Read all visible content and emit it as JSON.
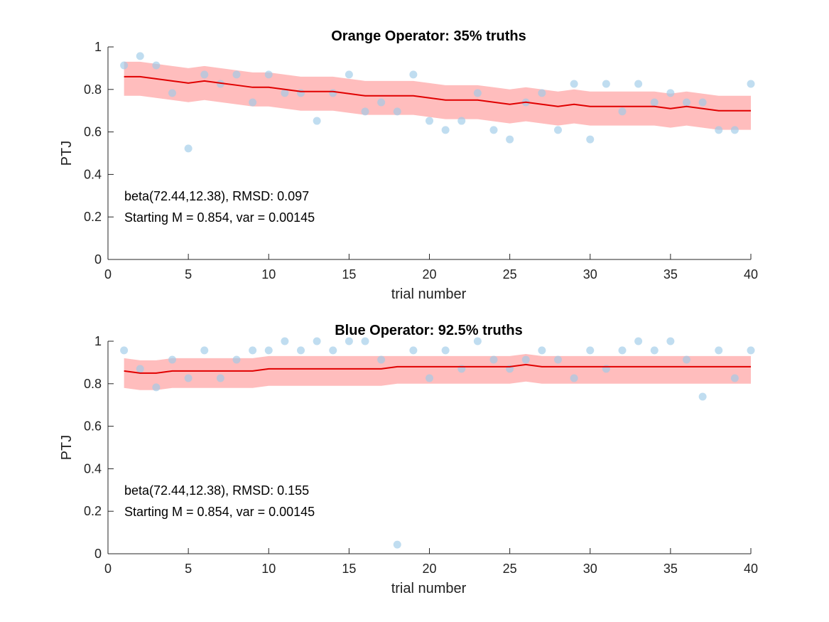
{
  "chart_data": [
    {
      "type": "scatter",
      "title": "Orange Operator: 35% truths",
      "xlabel": "trial number",
      "ylabel": "PTJ",
      "xlim": [
        0,
        40
      ],
      "ylim": [
        0,
        1
      ],
      "xticks": [
        0,
        5,
        10,
        15,
        20,
        25,
        30,
        35,
        40
      ],
      "yticks": [
        0,
        0.2,
        0.4,
        0.6,
        0.8,
        1
      ],
      "annotations": [
        "beta(72.44,12.38), RMSD: 0.097",
        "Starting M = 0.854, var = 0.00145"
      ],
      "colors": {
        "points": "#9ecbe8",
        "line": "#e00000",
        "band": "#ff9a9a"
      },
      "points": {
        "x": [
          1,
          2,
          3,
          4,
          5,
          6,
          7,
          8,
          9,
          10,
          11,
          12,
          13,
          14,
          15,
          16,
          17,
          18,
          19,
          20,
          21,
          22,
          23,
          24,
          25,
          26,
          27,
          28,
          29,
          30,
          31,
          32,
          33,
          34,
          35,
          36,
          37,
          38,
          39,
          40
        ],
        "y": [
          0.913,
          0.957,
          0.913,
          0.783,
          0.522,
          0.87,
          0.826,
          0.87,
          0.739,
          0.87,
          0.783,
          0.783,
          0.652,
          0.783,
          0.87,
          0.696,
          0.739,
          0.696,
          0.87,
          0.652,
          0.609,
          0.652,
          0.783,
          0.609,
          0.565,
          0.739,
          0.783,
          0.609,
          0.826,
          0.565,
          0.826,
          0.696,
          0.826,
          0.739,
          0.783,
          0.739,
          0.739,
          0.609,
          0.609,
          0.826
        ]
      },
      "mean_line": {
        "x": [
          1,
          2,
          3,
          4,
          5,
          6,
          7,
          8,
          9,
          10,
          11,
          12,
          13,
          14,
          15,
          16,
          17,
          18,
          19,
          20,
          21,
          22,
          23,
          24,
          25,
          26,
          27,
          28,
          29,
          30,
          31,
          32,
          33,
          34,
          35,
          36,
          37,
          38,
          39,
          40
        ],
        "y": [
          0.86,
          0.86,
          0.85,
          0.84,
          0.83,
          0.84,
          0.83,
          0.82,
          0.81,
          0.81,
          0.8,
          0.79,
          0.79,
          0.79,
          0.78,
          0.77,
          0.77,
          0.77,
          0.77,
          0.76,
          0.75,
          0.75,
          0.75,
          0.74,
          0.73,
          0.74,
          0.73,
          0.72,
          0.73,
          0.72,
          0.72,
          0.72,
          0.72,
          0.72,
          0.71,
          0.72,
          0.71,
          0.7,
          0.7,
          0.7
        ]
      },
      "band": {
        "upper": [
          0.93,
          0.93,
          0.92,
          0.91,
          0.9,
          0.91,
          0.9,
          0.89,
          0.88,
          0.88,
          0.87,
          0.86,
          0.86,
          0.86,
          0.85,
          0.84,
          0.84,
          0.84,
          0.84,
          0.83,
          0.82,
          0.82,
          0.82,
          0.81,
          0.8,
          0.81,
          0.8,
          0.79,
          0.8,
          0.79,
          0.79,
          0.79,
          0.79,
          0.79,
          0.78,
          0.79,
          0.78,
          0.77,
          0.77,
          0.77
        ],
        "lower": [
          0.77,
          0.77,
          0.76,
          0.75,
          0.74,
          0.75,
          0.74,
          0.73,
          0.72,
          0.72,
          0.71,
          0.7,
          0.7,
          0.7,
          0.69,
          0.68,
          0.68,
          0.68,
          0.68,
          0.67,
          0.66,
          0.66,
          0.66,
          0.65,
          0.64,
          0.65,
          0.64,
          0.63,
          0.64,
          0.63,
          0.63,
          0.63,
          0.63,
          0.63,
          0.62,
          0.63,
          0.62,
          0.61,
          0.61,
          0.61
        ]
      }
    },
    {
      "type": "scatter",
      "title": "Blue Operator: 92.5% truths",
      "xlabel": "trial number",
      "ylabel": "PTJ",
      "xlim": [
        0,
        40
      ],
      "ylim": [
        0,
        1
      ],
      "xticks": [
        0,
        5,
        10,
        15,
        20,
        25,
        30,
        35,
        40
      ],
      "yticks": [
        0,
        0.2,
        0.4,
        0.6,
        0.8,
        1
      ],
      "annotations": [
        "beta(72.44,12.38), RMSD: 0.155",
        "Starting M = 0.854, var = 0.00145"
      ],
      "colors": {
        "points": "#9ecbe8",
        "line": "#e00000",
        "band": "#ff9a9a"
      },
      "points": {
        "x": [
          1,
          2,
          3,
          4,
          5,
          6,
          7,
          8,
          9,
          10,
          11,
          12,
          13,
          14,
          15,
          16,
          17,
          18,
          19,
          20,
          21,
          22,
          23,
          24,
          25,
          26,
          27,
          28,
          29,
          30,
          31,
          32,
          33,
          34,
          35,
          36,
          37,
          38,
          39,
          40
        ],
        "y": [
          0.957,
          0.87,
          0.783,
          0.913,
          0.826,
          0.957,
          0.826,
          0.913,
          0.957,
          0.957,
          1.0,
          0.957,
          1.0,
          0.957,
          1.0,
          1.0,
          0.913,
          0.043,
          0.957,
          0.826,
          0.957,
          0.87,
          1.0,
          0.913,
          0.87,
          0.913,
          0.957,
          0.913,
          0.826,
          0.957,
          0.87,
          0.957,
          1.0,
          0.957,
          1.0,
          0.913,
          0.739,
          0.957,
          0.826,
          0.957
        ]
      },
      "mean_line": {
        "x": [
          1,
          2,
          3,
          4,
          5,
          6,
          7,
          8,
          9,
          10,
          11,
          12,
          13,
          14,
          15,
          16,
          17,
          18,
          19,
          20,
          21,
          22,
          23,
          24,
          25,
          26,
          27,
          28,
          29,
          30,
          31,
          32,
          33,
          34,
          35,
          36,
          37,
          38,
          39,
          40
        ],
        "y": [
          0.86,
          0.85,
          0.85,
          0.86,
          0.86,
          0.86,
          0.86,
          0.86,
          0.86,
          0.87,
          0.87,
          0.87,
          0.87,
          0.87,
          0.87,
          0.87,
          0.87,
          0.88,
          0.88,
          0.88,
          0.88,
          0.88,
          0.88,
          0.88,
          0.88,
          0.89,
          0.88,
          0.88,
          0.88,
          0.88,
          0.88,
          0.88,
          0.88,
          0.88,
          0.88,
          0.88,
          0.88,
          0.88,
          0.88,
          0.88
        ]
      },
      "band": {
        "upper": [
          0.92,
          0.91,
          0.91,
          0.92,
          0.92,
          0.92,
          0.92,
          0.92,
          0.92,
          0.93,
          0.93,
          0.93,
          0.93,
          0.93,
          0.93,
          0.93,
          0.93,
          0.93,
          0.93,
          0.93,
          0.93,
          0.93,
          0.93,
          0.93,
          0.93,
          0.94,
          0.93,
          0.93,
          0.93,
          0.93,
          0.93,
          0.93,
          0.93,
          0.93,
          0.93,
          0.93,
          0.93,
          0.93,
          0.93,
          0.93
        ],
        "lower": [
          0.78,
          0.77,
          0.77,
          0.78,
          0.78,
          0.78,
          0.78,
          0.78,
          0.78,
          0.79,
          0.79,
          0.79,
          0.79,
          0.79,
          0.79,
          0.79,
          0.79,
          0.8,
          0.8,
          0.8,
          0.8,
          0.8,
          0.8,
          0.8,
          0.8,
          0.81,
          0.8,
          0.8,
          0.8,
          0.8,
          0.8,
          0.8,
          0.8,
          0.8,
          0.8,
          0.8,
          0.8,
          0.8,
          0.8,
          0.8
        ]
      }
    }
  ]
}
